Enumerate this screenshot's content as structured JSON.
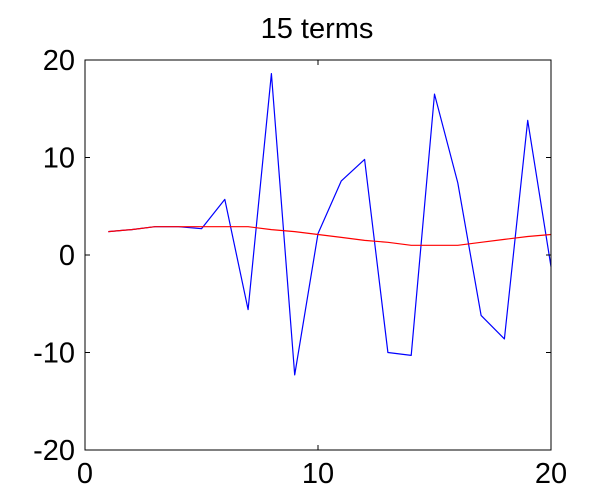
{
  "chart_data": {
    "type": "line",
    "title": "15 terms",
    "xlabel": "",
    "ylabel": "",
    "xlim": [
      0,
      20
    ],
    "ylim": [
      -20,
      20
    ],
    "xticks": [
      0,
      10,
      20
    ],
    "yticks": [
      -20,
      -10,
      0,
      10,
      20
    ],
    "xtick_labels": [
      "0",
      "10",
      "20"
    ],
    "ytick_labels": [
      "-20",
      "-10",
      "0",
      "10",
      "20"
    ],
    "grid": false,
    "series": [
      {
        "color": "#0000ff",
        "x": [
          1,
          2,
          3,
          4,
          5,
          6,
          7,
          8,
          9,
          10,
          11,
          12,
          13,
          14,
          15,
          16,
          17,
          18,
          19,
          20
        ],
        "y": [
          2.4,
          2.6,
          2.9,
          2.9,
          2.7,
          5.7,
          -5.6,
          18.6,
          -12.3,
          2.2,
          7.6,
          9.8,
          -10.0,
          -10.3,
          16.5,
          7.4,
          -6.2,
          -8.6,
          13.8,
          -1.2
        ]
      },
      {
        "color": "#ff0000",
        "x": [
          1,
          2,
          3,
          4,
          5,
          6,
          7,
          8,
          9,
          10,
          11,
          12,
          13,
          14,
          15,
          16,
          17,
          18,
          19,
          20
        ],
        "y": [
          2.4,
          2.6,
          2.9,
          2.9,
          2.9,
          2.9,
          2.9,
          2.6,
          2.4,
          2.1,
          1.8,
          1.5,
          1.3,
          1.0,
          1.0,
          1.0,
          1.3,
          1.6,
          1.9,
          2.1
        ]
      }
    ]
  }
}
